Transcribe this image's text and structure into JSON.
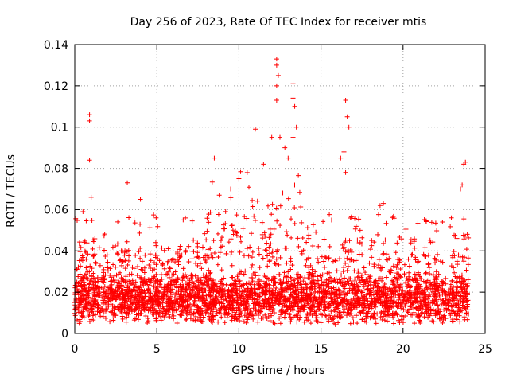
{
  "chart_data": {
    "type": "scatter",
    "title": "Day 256 of 2023, Rate Of TEC Index for receiver mtis",
    "xlabel": "GPS time / hours",
    "ylabel": "ROTI / TECUs",
    "xlim": [
      0,
      25
    ],
    "ylim": [
      0,
      0.14
    ],
    "x_ticks": [
      0,
      5,
      10,
      15,
      20,
      25
    ],
    "x_tick_labels": [
      "0",
      "5",
      "10",
      "15",
      "20",
      "25"
    ],
    "y_ticks": [
      0,
      0.02,
      0.04,
      0.06,
      0.08,
      0.1,
      0.12,
      0.14
    ],
    "y_tick_labels": [
      "0",
      "0.02",
      "0.04",
      "0.06",
      "0.08",
      "0.1",
      "0.12",
      "0.14"
    ],
    "grid": true,
    "marker": "+",
    "color": "#ff0000",
    "x_data_range": [
      0,
      24
    ],
    "dense_band": {
      "low": 0.004,
      "high": 0.035,
      "typical": 0.015
    },
    "peak_points": [
      {
        "x": 0.9,
        "y": 0.106
      },
      {
        "x": 0.9,
        "y": 0.103
      },
      {
        "x": 0.9,
        "y": 0.084
      },
      {
        "x": 1.0,
        "y": 0.066
      },
      {
        "x": 0.5,
        "y": 0.059
      },
      {
        "x": 3.2,
        "y": 0.073
      },
      {
        "x": 4.0,
        "y": 0.065
      },
      {
        "x": 8.5,
        "y": 0.085
      },
      {
        "x": 8.8,
        "y": 0.067
      },
      {
        "x": 9.5,
        "y": 0.07
      },
      {
        "x": 10.0,
        "y": 0.075
      },
      {
        "x": 11.0,
        "y": 0.099
      },
      {
        "x": 11.5,
        "y": 0.082
      },
      {
        "x": 12.0,
        "y": 0.095
      },
      {
        "x": 12.3,
        "y": 0.133
      },
      {
        "x": 12.3,
        "y": 0.13
      },
      {
        "x": 12.4,
        "y": 0.125
      },
      {
        "x": 12.3,
        "y": 0.12
      },
      {
        "x": 12.3,
        "y": 0.113
      },
      {
        "x": 12.5,
        "y": 0.095
      },
      {
        "x": 12.8,
        "y": 0.09
      },
      {
        "x": 13.0,
        "y": 0.085
      },
      {
        "x": 13.3,
        "y": 0.121
      },
      {
        "x": 13.3,
        "y": 0.114
      },
      {
        "x": 13.4,
        "y": 0.11
      },
      {
        "x": 13.5,
        "y": 0.1
      },
      {
        "x": 13.3,
        "y": 0.095
      },
      {
        "x": 16.2,
        "y": 0.085
      },
      {
        "x": 16.5,
        "y": 0.113
      },
      {
        "x": 16.6,
        "y": 0.105
      },
      {
        "x": 16.7,
        "y": 0.1
      },
      {
        "x": 16.4,
        "y": 0.088
      },
      {
        "x": 16.5,
        "y": 0.078
      },
      {
        "x": 18.6,
        "y": 0.062
      },
      {
        "x": 18.8,
        "y": 0.063
      },
      {
        "x": 23.8,
        "y": 0.083
      },
      {
        "x": 23.7,
        "y": 0.082
      },
      {
        "x": 23.6,
        "y": 0.072
      },
      {
        "x": 23.5,
        "y": 0.07
      }
    ]
  }
}
